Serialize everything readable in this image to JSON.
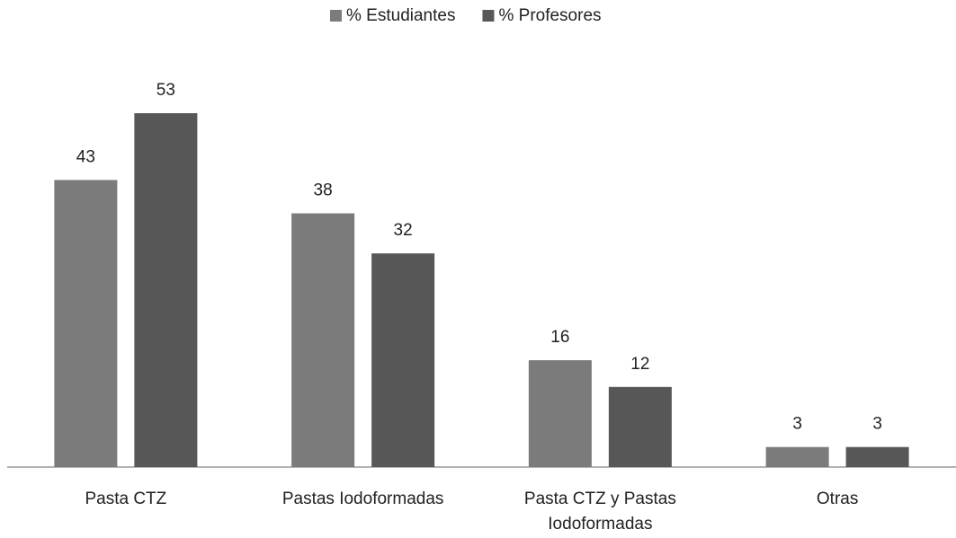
{
  "chart_data": {
    "type": "bar",
    "categories": [
      "Pasta CTZ",
      "Pastas Iodoformadas",
      "Pasta CTZ y Pastas Iodoformadas",
      "Otras"
    ],
    "series": [
      {
        "name": "% Estudiantes",
        "color": "#7b7b7b",
        "values": [
          43,
          38,
          16,
          3
        ]
      },
      {
        "name": "% Profesores",
        "color": "#575757",
        "values": [
          53,
          32,
          12,
          3
        ]
      }
    ],
    "ylim": [
      0,
      60
    ],
    "legend": "top"
  }
}
